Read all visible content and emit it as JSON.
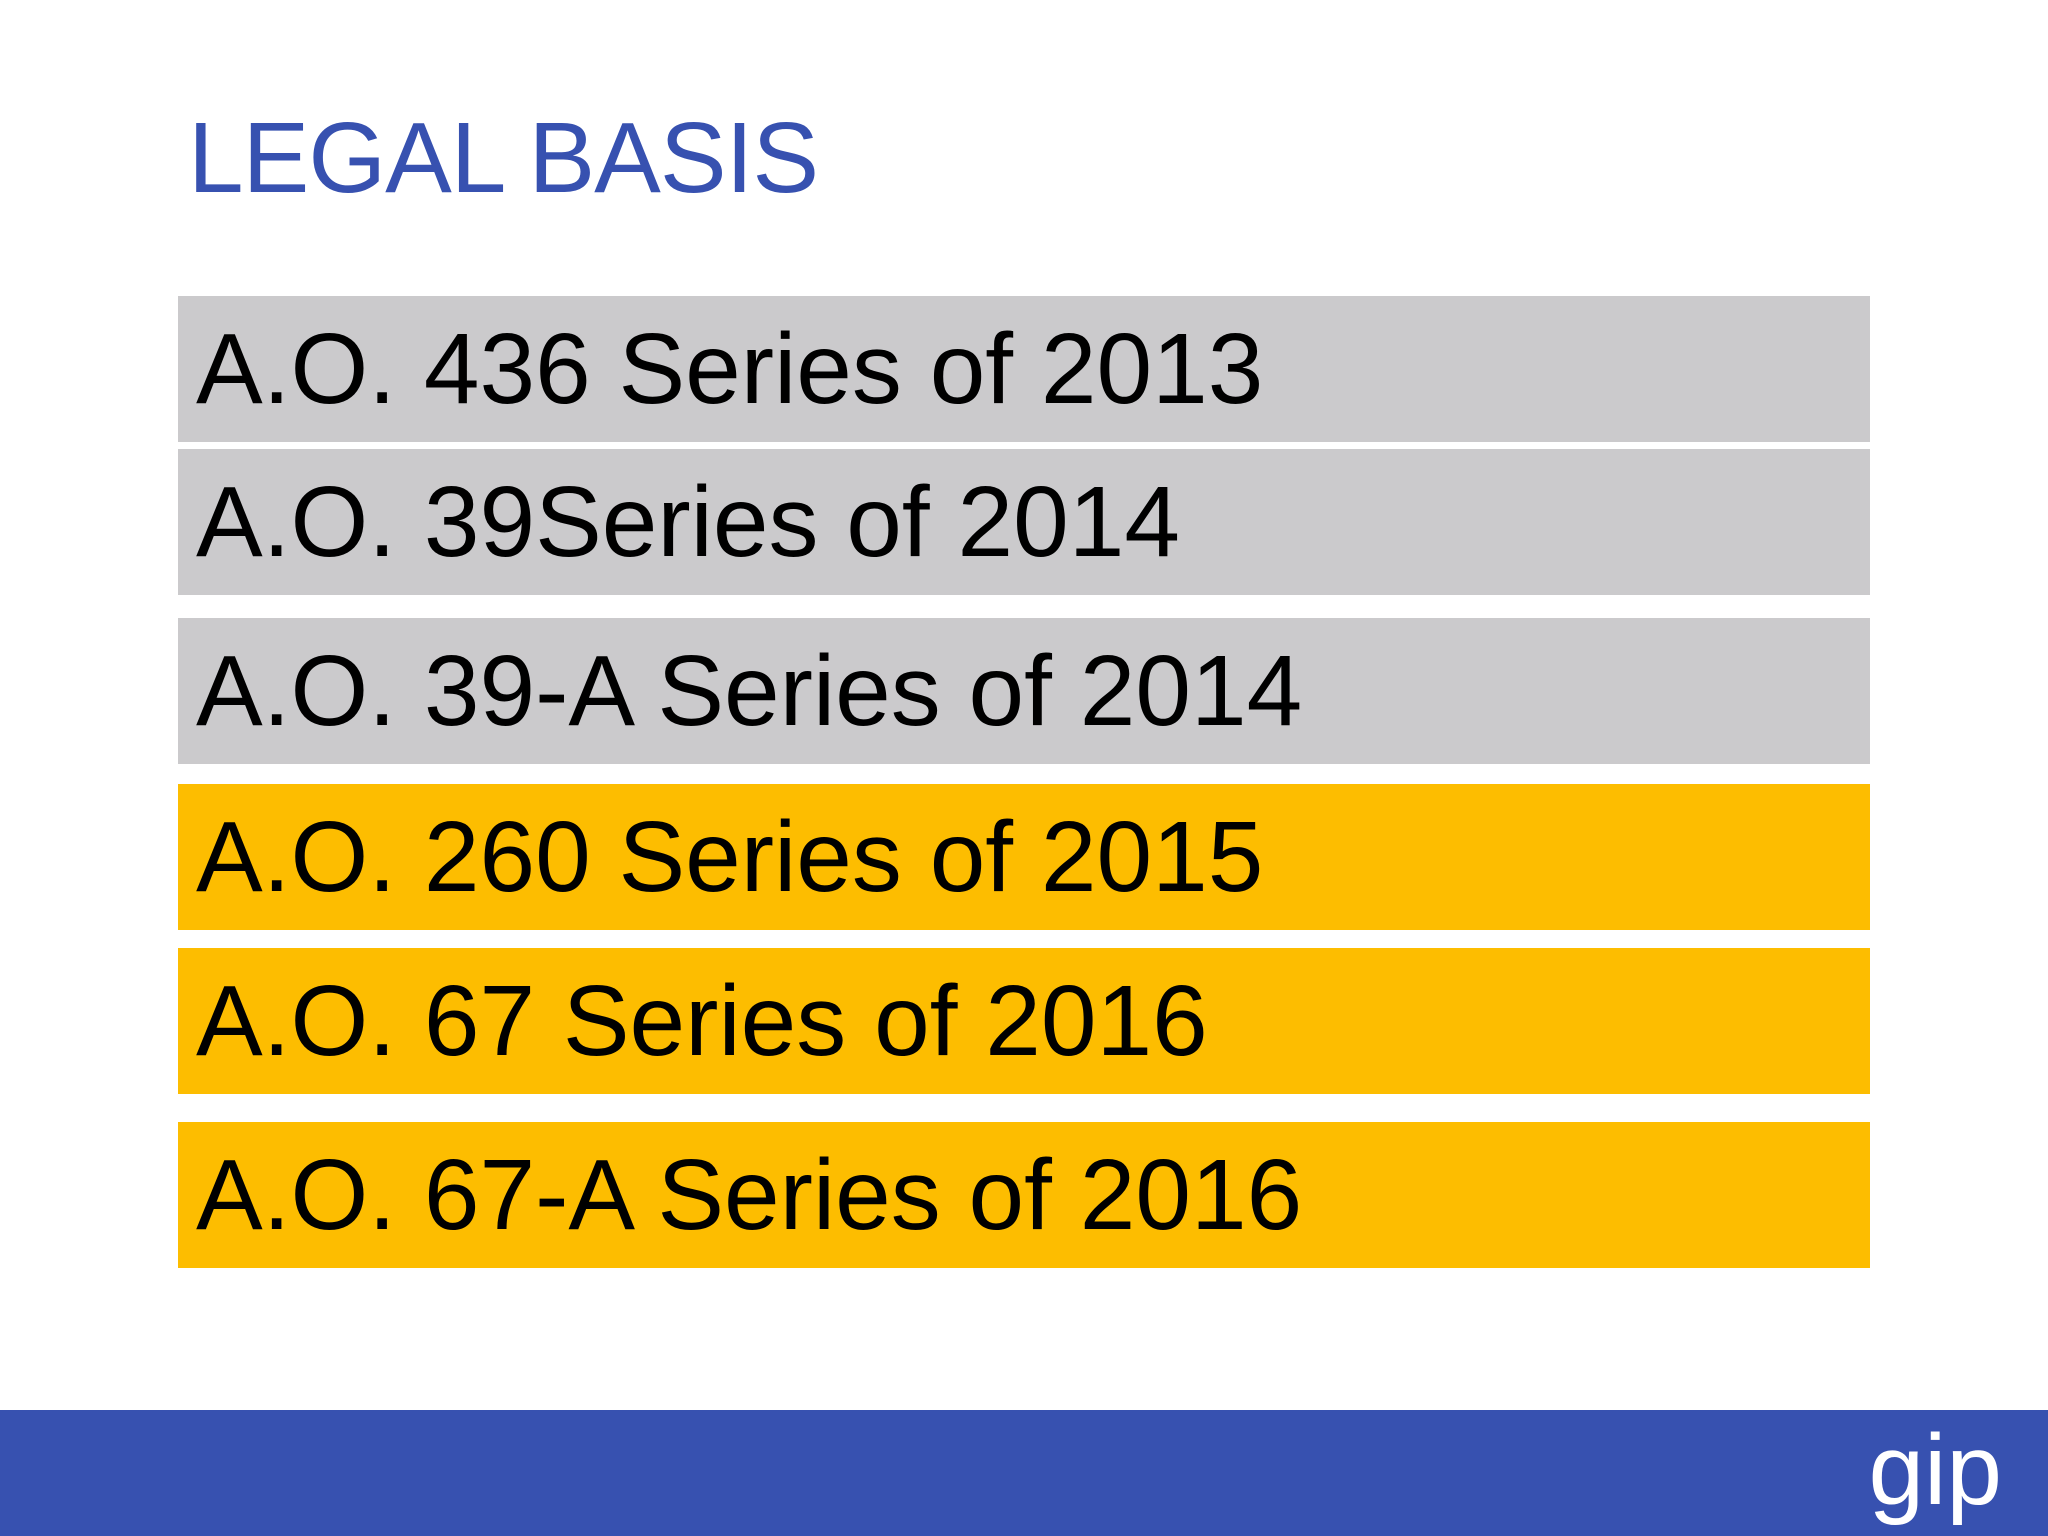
{
  "slide": {
    "title": "LEGAL BASIS",
    "items": [
      {
        "label": "A.O. 436 Series of 2013"
      },
      {
        "label": "A.O. 39Series of 2014"
      },
      {
        "label": "A.O. 39-A Series of 2014"
      },
      {
        "label": "A.O. 260 Series of 2015"
      },
      {
        "label": "A.O. 67 Series of 2016"
      },
      {
        "label": "A.O. 67-A Series of 2016"
      }
    ],
    "logo_text": "gip"
  },
  "colors": {
    "title": "#3751b0",
    "row_gray": "#cbcacc",
    "row_yellow": "#fdbd00",
    "footer": "#3751b0",
    "background": "#ffffff"
  }
}
